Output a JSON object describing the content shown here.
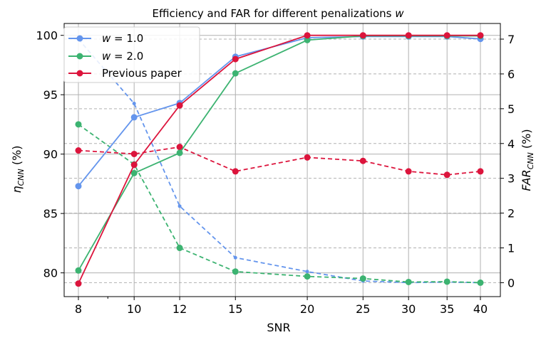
{
  "chart_data": {
    "type": "line",
    "title": "Efficiency and FAR for different penalizations w",
    "xlabel": "SNR",
    "ylabel_left": "η_CNN (%)",
    "ylabel_right": "FAR_CNN (%)",
    "x_scale": "log",
    "x": [
      8,
      10,
      12,
      15,
      20,
      25,
      30,
      35,
      40
    ],
    "x_tick_labels": [
      "8",
      "10",
      "12",
      "15",
      "20",
      "25",
      "30",
      "35",
      "40"
    ],
    "ylim_left": [
      78,
      101
    ],
    "yticks_left": [
      80,
      85,
      90,
      95,
      100
    ],
    "ylim_right": [
      -0.4,
      7.45
    ],
    "yticks_right": [
      0,
      1,
      2,
      3,
      4,
      5,
      6,
      7
    ],
    "grid": true,
    "legend_position": "top-left",
    "colors": {
      "w1": "#6495ED",
      "w2": "#3CB371",
      "prev": "#DC143C"
    },
    "series": [
      {
        "name": "w = 1.0",
        "legend_prefix": "w",
        "legend_value": "1.0",
        "axis": "left",
        "style": "solid",
        "color": "#6495ED",
        "values": [
          87.3,
          93.1,
          94.3,
          98.2,
          99.8,
          99.9,
          99.9,
          99.9,
          99.7
        ]
      },
      {
        "name": "w = 2.0",
        "legend_prefix": "w",
        "legend_value": "2.0",
        "axis": "left",
        "style": "solid",
        "color": "#3CB371",
        "values": [
          80.2,
          88.4,
          90.1,
          96.8,
          99.6,
          99.95,
          99.95,
          99.95,
          99.95
        ]
      },
      {
        "name": "Previous paper",
        "axis": "left",
        "style": "solid",
        "color": "#DC143C",
        "values": [
          79.1,
          89.1,
          94.1,
          98.0,
          100.0,
          100.0,
          100.0,
          100.0,
          100.0
        ]
      },
      {
        "axis": "right",
        "style": "dashed",
        "color": "#6495ED",
        "marker": "small",
        "values": [
          7.0,
          5.15,
          2.2,
          0.72,
          0.32,
          0.05,
          0.0,
          0.02,
          0.0
        ]
      },
      {
        "axis": "right",
        "style": "dashed",
        "color": "#3CB371",
        "marker": "large",
        "values": [
          4.55,
          3.4,
          1.0,
          0.32,
          0.18,
          0.12,
          0.02,
          0.03,
          0.0
        ]
      },
      {
        "axis": "right",
        "style": "dashed",
        "color": "#DC143C",
        "marker": "large",
        "values": [
          3.8,
          3.7,
          3.9,
          3.2,
          3.6,
          3.5,
          3.2,
          3.1,
          3.2
        ]
      }
    ]
  }
}
